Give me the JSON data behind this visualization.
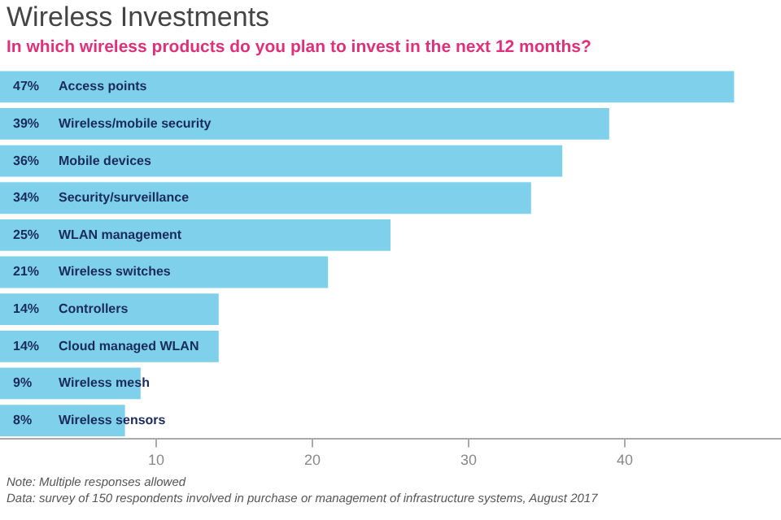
{
  "chart_data": {
    "type": "bar",
    "orientation": "horizontal",
    "title": "Wireless Investments",
    "subtitle": "In which wireless products do you plan to invest in the next 12 months?",
    "categories": [
      "Access points",
      "Wireless/mobile security",
      "Mobile devices",
      "Security/surveillance",
      "WLAN management",
      "Wireless switches",
      "Controllers",
      "Cloud managed WLAN",
      "Wireless mesh",
      "Wireless sensors"
    ],
    "values": [
      47,
      39,
      36,
      34,
      25,
      21,
      14,
      14,
      9,
      8
    ],
    "value_labels": [
      "47%",
      "39%",
      "36%",
      "34%",
      "25%",
      "21%",
      "14%",
      "14%",
      "9%",
      "8%"
    ],
    "color": "#7fd0ea",
    "xlim": [
      0,
      50
    ],
    "xticks": [
      10,
      20,
      30,
      40
    ],
    "grid": false,
    "annotations": [
      "Note: Multiple responses allowed",
      "Data: survey of 150 respondents involved in purchase or management of infrastructure systems, August 2017"
    ]
  }
}
